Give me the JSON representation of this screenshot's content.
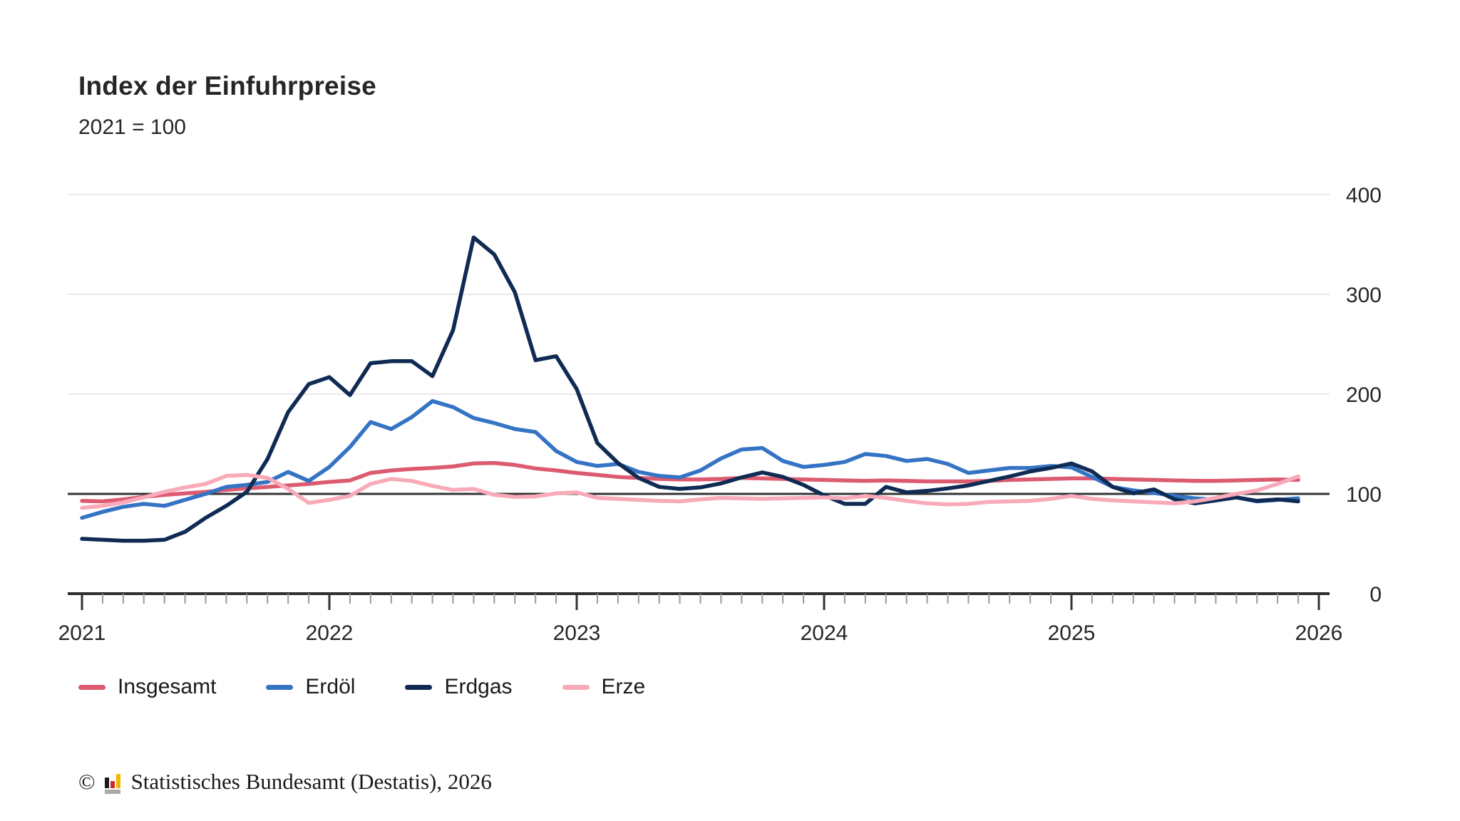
{
  "header": {
    "title": "Index der Einfuhrpreise",
    "subtitle": "2021 = 100"
  },
  "footer": {
    "copyright_symbol": "©",
    "source": "Statistisches Bundesamt (Destatis), 2026",
    "logo_icon": "destatis-bar-chart-icon",
    "logo_colors": {
      "black": "#1a1a1a",
      "red": "#d02b27",
      "gold": "#f5b800",
      "gray": "#a9a9a9"
    }
  },
  "colors": {
    "grid": "#e2e2e2",
    "reference_line": "#333333",
    "axis_line": "#2e2e2e",
    "minor_tick": "#999999",
    "major_tick": "#333333",
    "text": "#262626"
  },
  "chart_data": {
    "type": "line",
    "title": "Index der Einfuhrpreise",
    "subtitle": "2021 = 100",
    "x_unit": "month",
    "x_range": [
      "2021-01",
      "2025-12"
    ],
    "x_tick_labels": [
      "2021",
      "2022",
      "2023",
      "2024",
      "2025",
      "2026"
    ],
    "y_ticks": [
      0,
      100,
      200,
      300,
      400
    ],
    "ylim": [
      0,
      400
    ],
    "y_axis_side": "right",
    "grid": true,
    "reference_line": 100,
    "legend_position": "bottom",
    "series": [
      {
        "name": "Insgesamt",
        "color": "#dc5b70",
        "values": [
          93,
          92.5,
          94.5,
          97,
          99,
          100.5,
          102,
          104,
          105.5,
          107,
          108.5,
          110,
          112,
          113.5,
          121,
          123.5,
          125,
          126,
          127.5,
          130.5,
          131,
          129,
          125.5,
          123.5,
          121,
          119,
          117,
          116,
          115,
          114.5,
          114.5,
          115,
          116,
          115.5,
          115,
          114.5,
          114,
          113.5,
          113,
          113.5,
          113,
          112.5,
          112.5,
          112.5,
          113,
          114,
          114.5,
          115,
          115.5,
          115.5,
          115,
          114.5,
          114,
          113.5,
          113,
          113,
          113.5,
          114,
          114.5,
          114
        ]
      },
      {
        "name": "Erdöl",
        "color": "#3574c4",
        "values": [
          76,
          82,
          87,
          90,
          88,
          94,
          100,
          107,
          109,
          112,
          122,
          113,
          127,
          147,
          172,
          165,
          177,
          193,
          187,
          176,
          171,
          165,
          162,
          143,
          132,
          128,
          130,
          122,
          118,
          116.5,
          123.5,
          135.5,
          144.5,
          146,
          133,
          127,
          129,
          132,
          140,
          138,
          133,
          135,
          130,
          121,
          123.5,
          126,
          126,
          128,
          126.5,
          117,
          107,
          103.5,
          101,
          98,
          95.5,
          94,
          96.5,
          92.5,
          94,
          95.5
        ]
      },
      {
        "name": "Erdgas",
        "color": "#0f2b54",
        "values": [
          55,
          54,
          53,
          53,
          54,
          62,
          76,
          88,
          102,
          135,
          182,
          210,
          217,
          199,
          231,
          233,
          233,
          218,
          264,
          357,
          340,
          302,
          234,
          238,
          205,
          151,
          131,
          116,
          107,
          105,
          106.5,
          110.5,
          116.5,
          121.5,
          117,
          109,
          98.5,
          90,
          90,
          107,
          101.5,
          103,
          105.5,
          108.5,
          113,
          117.5,
          122.5,
          126,
          130.5,
          122.5,
          107,
          100.5,
          104.5,
          94.5,
          90.5,
          93.5,
          96.5,
          93,
          94.5,
          92.5
        ]
      },
      {
        "name": "Erze",
        "color": "#f9aab8",
        "values": [
          86,
          88,
          91.5,
          96.5,
          102,
          106.5,
          110,
          118,
          119,
          116,
          105,
          91,
          94,
          98,
          110,
          115,
          113,
          108,
          104,
          105,
          99,
          97,
          97.5,
          100.5,
          101.5,
          96,
          95,
          94,
          93,
          92.5,
          94.5,
          96,
          95.5,
          95,
          95.5,
          96,
          96.5,
          95.5,
          98,
          96,
          93,
          90.5,
          89.5,
          90,
          92,
          92.5,
          93,
          95,
          98,
          95,
          93.5,
          92.5,
          91.5,
          90.5,
          92.5,
          96,
          100,
          103.5,
          110,
          117.5
        ]
      }
    ]
  }
}
